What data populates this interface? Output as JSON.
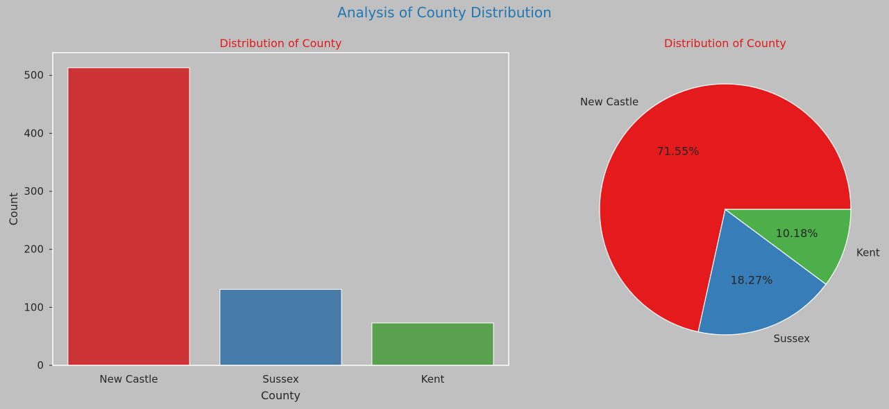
{
  "suptitle": "Analysis of County Distribution",
  "colors": {
    "figure_background": "#c0c0c0",
    "suptitle": "#1f77b4",
    "subtitle": "#e31a1c",
    "text": "#262626",
    "frame": "#ffffff"
  },
  "chart_data": [
    {
      "type": "bar",
      "title": "Distribution of County",
      "xlabel": "County",
      "ylabel": "Count",
      "categories": [
        "New Castle",
        "Sussex",
        "Kent"
      ],
      "values": [
        513,
        131,
        73
      ],
      "colors": [
        "#cb3335",
        "#477ca8",
        "#59a14f"
      ],
      "ylim": [
        0,
        539
      ],
      "yticks": [
        0,
        100,
        200,
        300,
        400,
        500
      ],
      "grid": false,
      "legend": "none"
    },
    {
      "type": "pie",
      "title": "Distribution of County",
      "labels": [
        "New Castle",
        "Sussex",
        "Kent"
      ],
      "values": [
        71.55,
        18.27,
        10.18
      ],
      "value_labels": [
        "71.55%",
        "18.27%",
        "10.18%"
      ],
      "colors": [
        "#e41a1c",
        "#377eb8",
        "#4daf4a"
      ],
      "start_angle_deg": 0,
      "direction": "counterclockwise",
      "legend": "none"
    }
  ]
}
